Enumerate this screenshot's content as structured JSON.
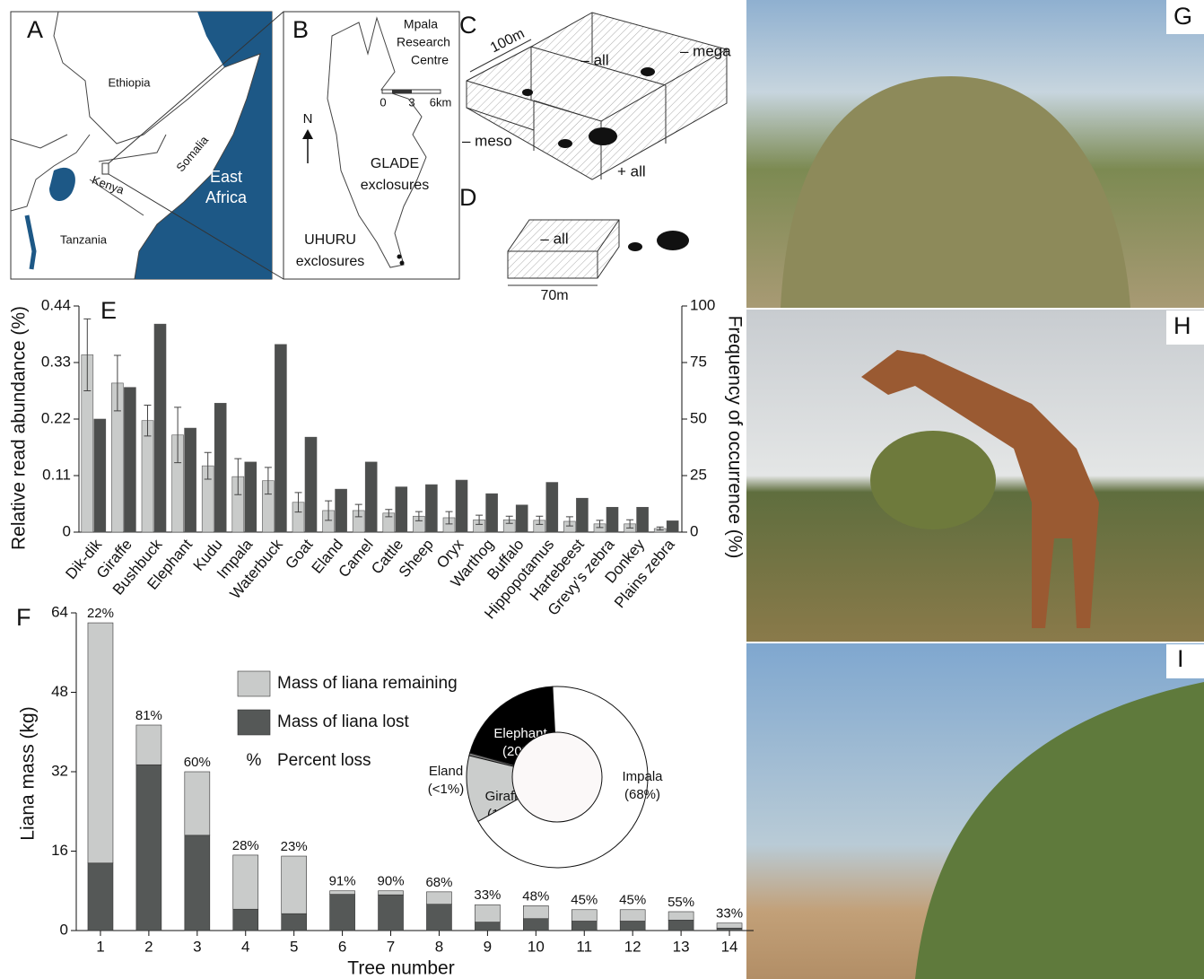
{
  "figure": {
    "panel_labels": [
      "A",
      "B",
      "C",
      "D",
      "E",
      "F",
      "G",
      "H",
      "I"
    ],
    "map_a": {
      "countries": [
        "Ethiopia",
        "Somalia",
        "Kenya",
        "Tanzania"
      ],
      "region": [
        "East",
        "Africa"
      ]
    },
    "map_b": {
      "research_centre": [
        "Mpala",
        "Research",
        "Centre"
      ],
      "north": "N",
      "scale_ticks": [
        "0",
        "3",
        "6km"
      ],
      "glade": [
        "GLADE",
        "exclosures"
      ],
      "uhuru": [
        "UHURU",
        "exclosures"
      ]
    },
    "diagram_c": {
      "size": "100m",
      "treatments": [
        "– all",
        "– mega",
        "– meso",
        "+ all"
      ]
    },
    "diagram_d": {
      "size": "70m",
      "treatment": "– all"
    }
  },
  "chart_data": [
    {
      "type": "grouped_bar",
      "ylabel": "Relative read abundance (%)",
      "y2label": "Frequency of occurrence (%)",
      "categories": [
        "Dik-dik",
        "Giraffe",
        "Bushbuck",
        "Elephant",
        "Kudu",
        "Impala",
        "Waterbuck",
        "Goat",
        "Eland",
        "Camel",
        "Cattle",
        "Sheep",
        "Oryx",
        "Warthog",
        "Buffalo",
        "Hippopotamus",
        "Hartebeest",
        "Grevy’s zebra",
        "Donkey",
        "Plains zebra"
      ],
      "ylim": [
        0,
        0.44
      ],
      "yticks": [
        0,
        0.11,
        0.22,
        0.33,
        0.44
      ],
      "y2lim": [
        0,
        100
      ],
      "y2ticks": [
        0,
        25,
        50,
        75,
        100
      ],
      "series": [
        {
          "color": "#c9cbca",
          "values": [
            0.345,
            0.29,
            0.217,
            0.189,
            0.129,
            0.108,
            0.1,
            0.058,
            0.042,
            0.042,
            0.037,
            0.031,
            0.028,
            0.024,
            0.024,
            0.023,
            0.021,
            0.016,
            0.016,
            0.007
          ],
          "errors": [
            0.07,
            0.054,
            0.03,
            0.054,
            0.026,
            0.035,
            0.026,
            0.019,
            0.019,
            0.012,
            0.007,
            0.009,
            0.012,
            0.009,
            0.007,
            0.008,
            0.009,
            0.007,
            0.008,
            0.003
          ]
        },
        {
          "color": "#4d4f4e",
          "axis": "y2",
          "values": [
            50,
            64,
            92,
            46,
            57,
            31,
            83,
            42,
            19,
            31,
            20,
            21,
            23,
            17,
            12,
            22,
            15,
            11,
            11,
            5
          ]
        }
      ]
    },
    {
      "type": "stacked_bar",
      "xlabel": "Tree number",
      "ylabel": "Liana mass (kg)",
      "categories": [
        1,
        2,
        3,
        4,
        5,
        6,
        7,
        8,
        9,
        10,
        11,
        12,
        13,
        14
      ],
      "ylim": [
        0,
        64
      ],
      "yticks": [
        0,
        16,
        32,
        48,
        64
      ],
      "series": [
        {
          "name": "Mass of liana lost",
          "color": "#555857",
          "values": [
            13.6,
            33.4,
            19.2,
            4.3,
            3.4,
            7.3,
            7.2,
            5.3,
            1.7,
            2.4,
            1.9,
            1.9,
            2.1,
            0.5
          ]
        },
        {
          "name": "Mass of liana remaining",
          "color": "#c9cbca",
          "values": [
            48.4,
            8,
            12.8,
            10.9,
            11.6,
            0.7,
            0.8,
            2.5,
            3.5,
            2.6,
            2.3,
            2.3,
            1.7,
            1
          ]
        }
      ],
      "percent_loss": {
        "name": "Percent loss",
        "symbol": "%",
        "values": [
          22,
          81,
          60,
          28,
          23,
          91,
          90,
          68,
          33,
          48,
          45,
          45,
          55,
          33
        ],
        "value_labels": [
          "22%",
          "81%",
          "60%",
          "28%",
          "23%",
          "91%",
          "90%",
          "68%",
          "33%",
          "48%",
          "45%",
          "45%",
          "55%",
          "33%"
        ]
      }
    },
    {
      "type": "donut",
      "categories": [
        "Elephant",
        "Eland",
        "Giraffe",
        "Impala"
      ],
      "values": [
        20,
        0.5,
        12,
        68
      ],
      "value_labels": [
        "(20%)",
        "(<1%)",
        "(12%)",
        "(68%)"
      ],
      "colors": [
        "#000000",
        "#777777",
        "#cbcdcc",
        "#ffffff"
      ]
    }
  ]
}
